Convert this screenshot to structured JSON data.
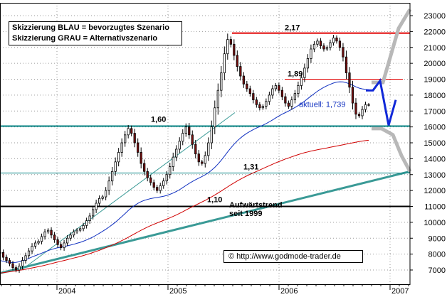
{
  "chart_data": {
    "type": "candlestick",
    "title": "",
    "xlabel": "",
    "ylabel": "",
    "ylim": [
      6500,
      23500
    ],
    "yticks": [
      7000,
      8000,
      9000,
      10000,
      11000,
      12000,
      13000,
      14000,
      15000,
      16000,
      17000,
      18000,
      19000,
      20000,
      21000,
      22000,
      23000
    ],
    "xticks": [
      "2004",
      "2005",
      "2006",
      "2007"
    ],
    "legend": {
      "line1": "Skizzierung BLAU = bevorzugtes Szenario",
      "line2": "Skizzierung GRAU = Alternativszenario"
    },
    "levels": [
      {
        "label": "2,17",
        "value": 21900,
        "color": "#e00000"
      },
      {
        "label": "1,89",
        "value": 19000,
        "color": "#e00000"
      },
      {
        "label": "1,60",
        "value": 16050,
        "color": "#008080"
      },
      {
        "label": "1,31",
        "value": 13100,
        "color": "#008080"
      },
      {
        "label": "1,10",
        "value": 11000,
        "color": "#000000"
      }
    ],
    "current": {
      "label": "aktuell: 1,739",
      "value": 17390
    },
    "trend_label": {
      "line1": "Aufwärtstrend",
      "line2": "seit 1999"
    },
    "copyright": "© http://www.godmode-trader.de",
    "series": [
      {
        "name": "price",
        "close": [
          8100,
          7800,
          7600,
          7400,
          7150,
          7000,
          7250,
          7600,
          7900,
          8200,
          8500,
          8700,
          8800,
          9100,
          9400,
          9500,
          9200,
          8900,
          8600,
          8400,
          8700,
          9000,
          9200,
          9400,
          9500,
          9600,
          9800,
          10100,
          10400,
          10800,
          11200,
          11500,
          11600,
          12000,
          12600,
          13200,
          13800,
          14400,
          15000,
          15500,
          15900,
          15600,
          15000,
          14400,
          13700,
          13200,
          12800,
          12500,
          12200,
          12000,
          12300,
          12600,
          13000,
          13500,
          14100,
          14600,
          15100,
          15600,
          16000,
          15500,
          14900,
          14300,
          13800,
          13700,
          14200,
          15000,
          16000,
          17200,
          18300,
          19400,
          20600,
          21500,
          21200,
          20500,
          19800,
          19200,
          18700,
          18400,
          18100,
          17700,
          17400,
          17200,
          17300,
          17600,
          18000,
          18400,
          18600,
          18300,
          17900,
          17500,
          17300,
          17700,
          18100,
          18600,
          19100,
          19700,
          20300,
          20900,
          21200,
          21400,
          21100,
          20900,
          21000,
          21300,
          21600,
          21400,
          21000,
          20400,
          19400,
          18500,
          17500,
          16800,
          16700,
          17100,
          17400,
          17390
        ]
      },
      {
        "name": "ma-blue",
        "values": [
          7600,
          7550,
          7500,
          7480,
          7470,
          7480,
          7520,
          7580,
          7650,
          7730,
          7820,
          7900,
          7980,
          8060,
          8140,
          8220,
          8290,
          8350,
          8400,
          8440,
          8480,
          8520,
          8570,
          8620,
          8680,
          8740,
          8810,
          8890,
          8980,
          9080,
          9190,
          9310,
          9430,
          9560,
          9700,
          9850,
          10010,
          10180,
          10360,
          10550,
          10740,
          10910,
          11060,
          11190,
          11300,
          11380,
          11440,
          11490,
          11530,
          11560,
          11600,
          11640,
          11690,
          11760,
          11840,
          11940,
          12050,
          12180,
          12320,
          12450,
          12570,
          12680,
          12780,
          12880,
          12990,
          13120,
          13280,
          13460,
          13670,
          13900,
          14160,
          14430,
          14680,
          14910,
          15120,
          15300,
          15460,
          15600,
          15720,
          15830,
          15930,
          16020,
          16110,
          16210,
          16320,
          16440,
          16570,
          16690,
          16800,
          16900,
          17000,
          17110,
          17220,
          17340,
          17470,
          17620,
          17780,
          17940,
          18090,
          18240,
          18370,
          18490,
          18590,
          18680,
          18760,
          18820,
          18840,
          18830,
          18780,
          18710,
          18620,
          18520,
          18440,
          18390,
          18360,
          18340
        ]
      },
      {
        "name": "ma-red",
        "values": [
          6800,
          6830,
          6860,
          6890,
          6920,
          6950,
          6980,
          7010,
          7050,
          7090,
          7130,
          7170,
          7210,
          7250,
          7300,
          7350,
          7400,
          7450,
          7500,
          7550,
          7600,
          7650,
          7700,
          7750,
          7800,
          7850,
          7910,
          7970,
          8030,
          8100,
          8170,
          8240,
          8320,
          8400,
          8480,
          8570,
          8660,
          8750,
          8850,
          8950,
          9060,
          9170,
          9280,
          9390,
          9500,
          9600,
          9700,
          9790,
          9880,
          9960,
          10040,
          10120,
          10200,
          10280,
          10370,
          10460,
          10560,
          10660,
          10770,
          10880,
          10980,
          11080,
          11180,
          11280,
          11380,
          11490,
          11600,
          11720,
          11840,
          11970,
          12100,
          12230,
          12360,
          12480,
          12600,
          12710,
          12820,
          12920,
          13020,
          13110,
          13200,
          13290,
          13380,
          13470,
          13560,
          13650,
          13740,
          13820,
          13900,
          13980,
          14050,
          14120,
          14190,
          14260,
          14320,
          14380,
          14430,
          14480,
          14520,
          14560,
          14600,
          14640,
          14680,
          14720,
          14760,
          14800,
          14840,
          14880,
          14920,
          14960,
          15000,
          15040,
          15080,
          15110,
          15140,
          15160
        ]
      }
    ]
  }
}
